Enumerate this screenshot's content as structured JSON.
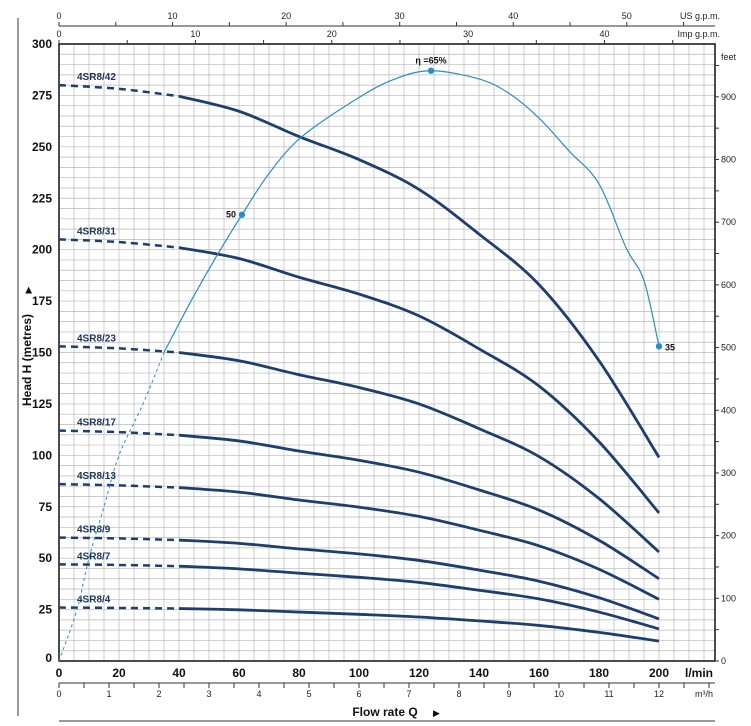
{
  "chart_data": {
    "type": "line",
    "xlabel": "Flow rate Q",
    "ylabel": "Head H (metres)",
    "x_unit": "l/min",
    "xlim": [
      0,
      218.7
    ],
    "ylim": [
      0,
      300
    ],
    "x_ticks": [
      0,
      20,
      40,
      60,
      80,
      100,
      120,
      140,
      160,
      180,
      200
    ],
    "y_ticks": [
      0,
      25,
      50,
      75,
      100,
      125,
      150,
      175,
      200,
      225,
      250,
      275,
      300
    ],
    "grid": true,
    "x": [
      0,
      20,
      40,
      60,
      80,
      100,
      120,
      140,
      160,
      180,
      200
    ],
    "dashed_below_x": 40,
    "series": [
      {
        "name": "4SR8/42",
        "values": [
          280,
          278.2,
          274.6,
          267.3,
          255,
          243.8,
          229.3,
          207.6,
          183,
          146,
          99
        ]
      },
      {
        "name": "4SR8/31",
        "values": [
          205,
          203.7,
          201,
          195.7,
          186.6,
          178.4,
          167.8,
          151.8,
          133.7,
          106.6,
          72
        ]
      },
      {
        "name": "4SR8/23",
        "values": [
          153,
          152,
          150,
          146,
          139.2,
          133,
          125,
          113,
          99.4,
          79,
          53
        ]
      },
      {
        "name": "4SR8/17",
        "values": [
          112,
          111.3,
          109.8,
          107,
          102.1,
          97.6,
          91.8,
          83.2,
          73.4,
          58.7,
          40
        ]
      },
      {
        "name": "4SR8/13",
        "values": [
          86,
          85.4,
          84.3,
          82.1,
          78.3,
          74.8,
          70.3,
          63.6,
          56,
          44.6,
          30
        ]
      },
      {
        "name": "4SR8/9",
        "values": [
          60,
          59.6,
          58.8,
          57.2,
          54.5,
          52.1,
          48.9,
          44.2,
          38.8,
          30.8,
          20.5
        ]
      },
      {
        "name": "4SR8/7",
        "values": [
          47,
          46.7,
          46.1,
          44.8,
          42.7,
          40.7,
          38.2,
          34.4,
          30.2,
          23.8,
          15.6
        ]
      },
      {
        "name": "4SR8/4",
        "values": [
          26,
          25.8,
          25.5,
          24.9,
          23.8,
          22.7,
          21.4,
          19.5,
          17.3,
          13.9,
          9.7
        ]
      }
    ],
    "efficiency_curve": {
      "points": [
        [
          0,
          0
        ],
        [
          6,
          25
        ],
        [
          10,
          50
        ],
        [
          15,
          75
        ],
        [
          20,
          100
        ],
        [
          28,
          125
        ],
        [
          35,
          150
        ],
        [
          44,
          175
        ],
        [
          53,
          198
        ],
        [
          61,
          217
        ],
        [
          70,
          237
        ],
        [
          81,
          255
        ],
        [
          100,
          274
        ],
        [
          112,
          283
        ],
        [
          124,
          287
        ],
        [
          140,
          283
        ],
        [
          150,
          276
        ],
        [
          160,
          264
        ],
        [
          170,
          248
        ],
        [
          180,
          232
        ],
        [
          189,
          201
        ],
        [
          195,
          185
        ],
        [
          200,
          153
        ]
      ],
      "markers": [
        {
          "x": 61,
          "y": 217,
          "label": "50"
        },
        {
          "x": 124,
          "y": 287,
          "label": "η =65%"
        },
        {
          "x": 200,
          "y": 153,
          "label": "35"
        }
      ]
    },
    "secondary_axes": {
      "us_gpm": {
        "label": "US g.p.m.",
        "ticks": [
          0,
          10,
          20,
          30,
          40,
          50
        ]
      },
      "imp_gpm": {
        "label": "Imp g.p.m.",
        "ticks": [
          0,
          10,
          20,
          30,
          40
        ]
      },
      "m3h": {
        "label": "m³/h",
        "ticks": [
          0,
          1,
          2,
          3,
          4,
          5,
          6,
          7,
          8,
          9,
          10,
          11,
          12
        ]
      },
      "feet": {
        "label": "feet",
        "ticks": [
          0,
          100,
          200,
          300,
          400,
          500,
          600,
          700,
          800,
          900
        ]
      }
    },
    "colors": {
      "pump_curve": "#1d3f6e",
      "efficiency": "#2a8fbf",
      "grid": "#b8b8b8"
    }
  }
}
